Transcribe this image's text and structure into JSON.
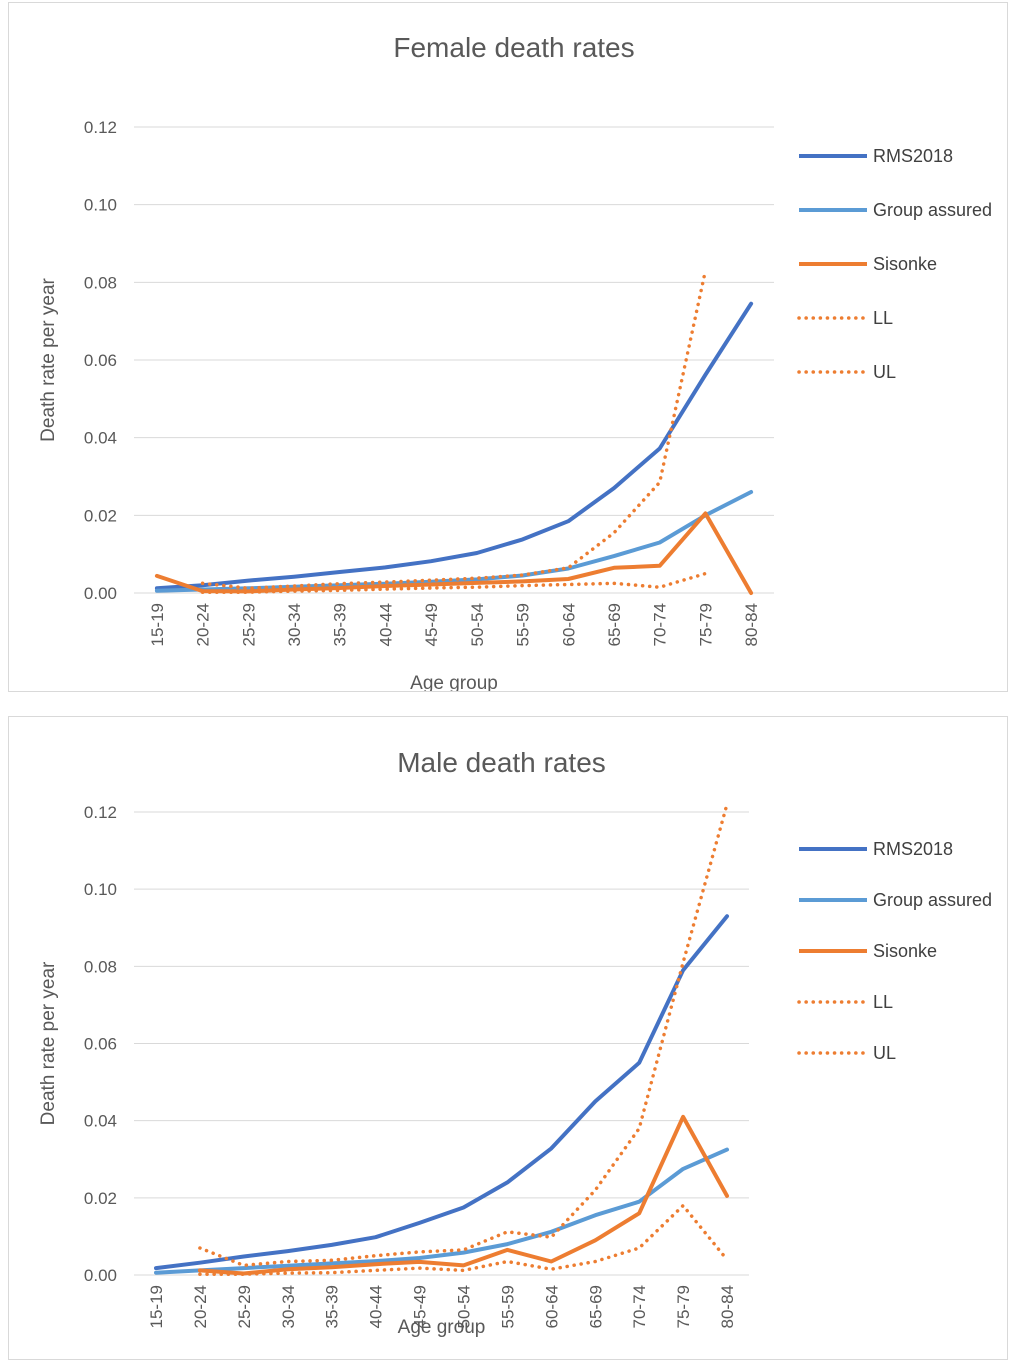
{
  "colors": {
    "RMS2018": "#4472c4",
    "Group assured": "#5b9bd5",
    "Sisonke": "#ed7d31",
    "LL": "#ed7d31",
    "UL": "#ed7d31",
    "grid": "#d9d9d9",
    "text": "#595959"
  },
  "chart_data": [
    {
      "type": "line",
      "title": "Female death rates",
      "xlabel": "Age group",
      "ylabel": "Death rate per year",
      "categories": [
        "15-19",
        "20-24",
        "25-29",
        "30-34",
        "35-39",
        "40-44",
        "45-49",
        "50-54",
        "55-59",
        "60-64",
        "65-69",
        "70-74",
        "75-79",
        "80-84"
      ],
      "ylim": [
        0,
        0.12
      ],
      "yticks": [
        "0.00",
        "0.02",
        "0.04",
        "0.06",
        "0.08",
        "0.10",
        "0.12"
      ],
      "grid": true,
      "legend_position": "right",
      "series": [
        {
          "name": "RMS2018",
          "style": "solid",
          "values": [
            0.0012,
            0.002,
            0.0032,
            0.0042,
            0.0054,
            0.0066,
            0.0082,
            0.0103,
            0.0138,
            0.0185,
            0.027,
            0.0372,
            0.0562,
            0.0745
          ]
        },
        {
          "name": "Group assured",
          "style": "solid",
          "values": [
            0.0006,
            0.0009,
            0.0012,
            0.0016,
            0.002,
            0.0024,
            0.0029,
            0.0035,
            0.0045,
            0.0063,
            0.0095,
            0.013,
            0.02,
            0.026
          ]
        },
        {
          "name": "Sisonke",
          "style": "solid",
          "values": [
            0.0044,
            0.0005,
            0.0004,
            0.0009,
            0.0013,
            0.0018,
            0.0022,
            0.0026,
            0.003,
            0.0036,
            0.0065,
            0.007,
            0.0205,
            0.0
          ]
        },
        {
          "name": "LL",
          "style": "dotted",
          "values": [
            null,
            0.0002,
            0.0002,
            0.0005,
            0.0007,
            0.001,
            0.0013,
            0.0015,
            0.0019,
            0.0022,
            0.0025,
            0.0015,
            0.005,
            null
          ]
        },
        {
          "name": "UL",
          "style": "dotted",
          "values": [
            null,
            0.0025,
            0.0012,
            0.0018,
            0.0024,
            0.0028,
            0.0033,
            0.0038,
            0.0046,
            0.0065,
            0.0155,
            0.0285,
            0.083,
            null
          ]
        }
      ]
    },
    {
      "type": "line",
      "title": "Male death rates",
      "xlabel": "Age group",
      "ylabel": "Death rate per year",
      "categories": [
        "15-19",
        "20-24",
        "25-29",
        "30-34",
        "35-39",
        "40-44",
        "45-49",
        "50-54",
        "55-59",
        "60-64",
        "65-69",
        "70-74",
        "75-79",
        "80-84"
      ],
      "ylim": [
        0,
        0.12
      ],
      "yticks": [
        "0.00",
        "0.02",
        "0.04",
        "0.06",
        "0.08",
        "0.10",
        "0.12"
      ],
      "grid": true,
      "legend_position": "right",
      "series": [
        {
          "name": "RMS2018",
          "style": "solid",
          "values": [
            0.0018,
            0.0032,
            0.0048,
            0.0062,
            0.0078,
            0.0098,
            0.0135,
            0.0175,
            0.024,
            0.0328,
            0.045,
            0.055,
            0.079,
            0.093
          ]
        },
        {
          "name": "Group assured",
          "style": "solid",
          "values": [
            0.0006,
            0.0012,
            0.0018,
            0.0024,
            0.003,
            0.0036,
            0.0044,
            0.0058,
            0.008,
            0.0112,
            0.0155,
            0.019,
            0.0275,
            0.0325
          ]
        },
        {
          "name": "Sisonke",
          "style": "solid",
          "values": [
            null,
            0.0012,
            0.0004,
            0.0015,
            0.002,
            0.0028,
            0.0034,
            0.0025,
            0.0065,
            0.0035,
            0.009,
            0.016,
            0.041,
            0.0205
          ]
        },
        {
          "name": "LL",
          "style": "dotted",
          "values": [
            null,
            0.0002,
            0.0002,
            0.0005,
            0.0006,
            0.0012,
            0.0018,
            0.0012,
            0.0035,
            0.0015,
            0.0035,
            0.007,
            0.018,
            0.004
          ]
        },
        {
          "name": "UL",
          "style": "dotted",
          "values": [
            null,
            0.007,
            0.0025,
            0.0035,
            0.0038,
            0.005,
            0.006,
            0.0065,
            0.0112,
            0.0098,
            0.022,
            0.038,
            0.081,
            0.122
          ]
        }
      ]
    }
  ]
}
